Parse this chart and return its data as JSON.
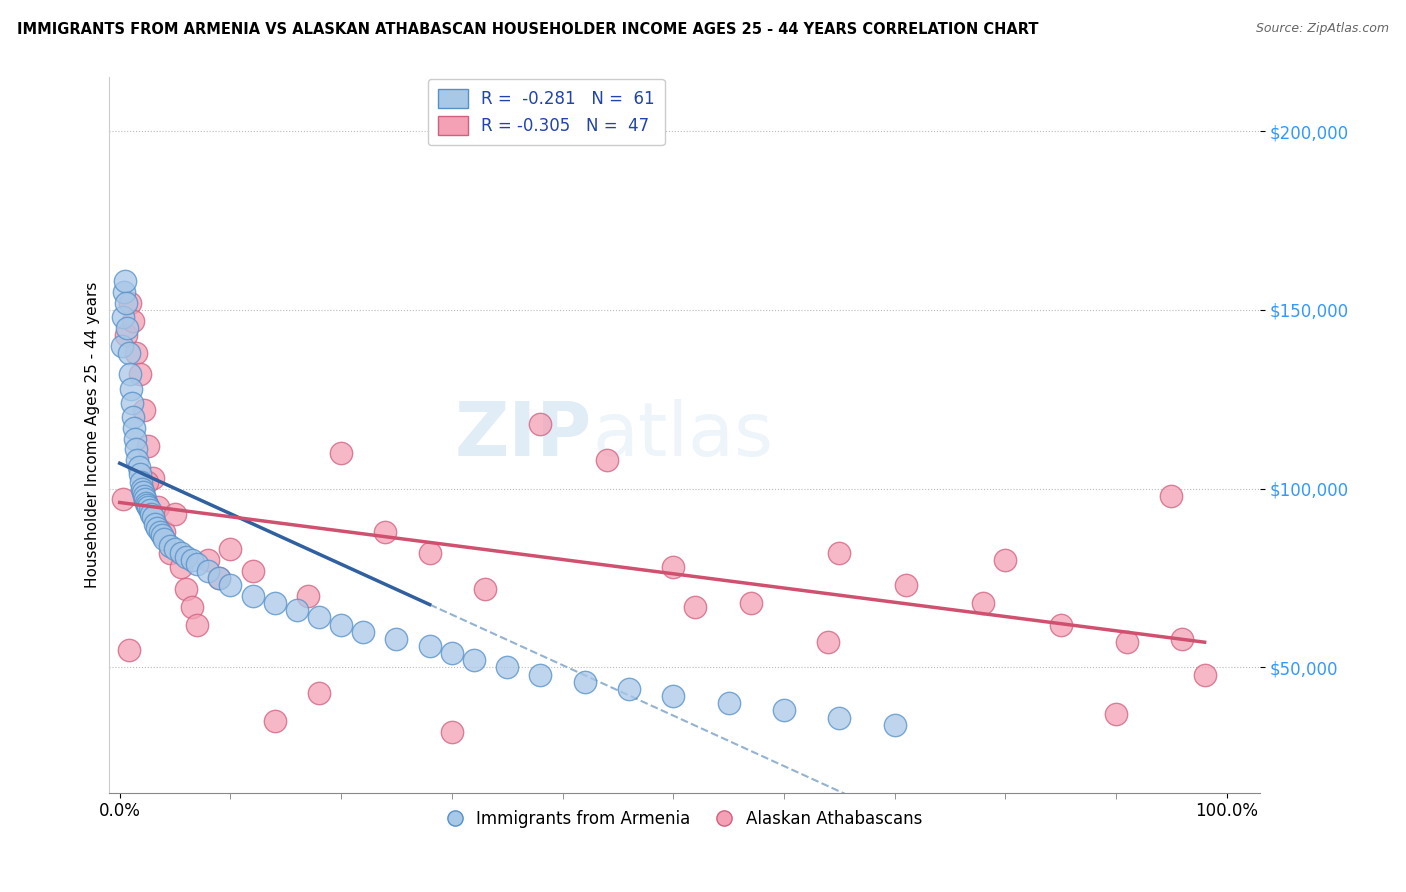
{
  "title": "IMMIGRANTS FROM ARMENIA VS ALASKAN ATHABASCAN HOUSEHOLDER INCOME AGES 25 - 44 YEARS CORRELATION CHART",
  "source": "Source: ZipAtlas.com",
  "ylabel": "Householder Income Ages 25 - 44 years",
  "y_tick_labels": [
    "$50,000",
    "$100,000",
    "$150,000",
    "$200,000"
  ],
  "y_tick_values": [
    50000,
    100000,
    150000,
    200000
  ],
  "legend_r1": "R =  -0.281",
  "legend_n1": "N =  61",
  "legend_r2": "R = -0.305",
  "legend_n2": "N =  47",
  "color_blue": "#a8c8e8",
  "color_pink": "#f4a0b5",
  "color_blue_edge": "#5590c8",
  "color_pink_edge": "#d06080",
  "color_blue_line": "#3060a0",
  "color_pink_line": "#d05070",
  "color_dashed": "#88aacc",
  "watermark_zip": "ZIP",
  "watermark_atlas": "atlas",
  "blue_scatter_x": [
    0.002,
    0.003,
    0.004,
    0.005,
    0.006,
    0.007,
    0.008,
    0.009,
    0.01,
    0.011,
    0.012,
    0.013,
    0.014,
    0.015,
    0.016,
    0.017,
    0.018,
    0.019,
    0.02,
    0.021,
    0.022,
    0.023,
    0.024,
    0.025,
    0.026,
    0.027,
    0.028,
    0.03,
    0.032,
    0.034,
    0.036,
    0.038,
    0.04,
    0.045,
    0.05,
    0.055,
    0.06,
    0.065,
    0.07,
    0.08,
    0.09,
    0.1,
    0.12,
    0.14,
    0.16,
    0.18,
    0.2,
    0.22,
    0.25,
    0.28,
    0.3,
    0.32,
    0.35,
    0.38,
    0.42,
    0.46,
    0.5,
    0.55,
    0.6,
    0.65,
    0.7
  ],
  "blue_scatter_y": [
    140000,
    148000,
    155000,
    158000,
    152000,
    145000,
    138000,
    132000,
    128000,
    124000,
    120000,
    117000,
    114000,
    111000,
    108000,
    106000,
    104000,
    102000,
    100000,
    99000,
    98000,
    97000,
    96000,
    95500,
    95000,
    94000,
    93000,
    92000,
    90000,
    89000,
    88000,
    87000,
    86000,
    84000,
    83000,
    82000,
    81000,
    80000,
    79000,
    77000,
    75000,
    73000,
    70000,
    68000,
    66000,
    64000,
    62000,
    60000,
    58000,
    56000,
    54000,
    52000,
    50000,
    48000,
    46000,
    44000,
    42000,
    40000,
    38000,
    36000,
    34000
  ],
  "pink_scatter_x": [
    0.003,
    0.006,
    0.009,
    0.012,
    0.015,
    0.018,
    0.022,
    0.026,
    0.03,
    0.035,
    0.04,
    0.045,
    0.05,
    0.055,
    0.06,
    0.065,
    0.07,
    0.08,
    0.09,
    0.1,
    0.12,
    0.14,
    0.17,
    0.2,
    0.24,
    0.28,
    0.33,
    0.38,
    0.44,
    0.5,
    0.57,
    0.64,
    0.71,
    0.78,
    0.85,
    0.91,
    0.95,
    0.98,
    0.008,
    0.025,
    0.18,
    0.3,
    0.52,
    0.65,
    0.8,
    0.9,
    0.96
  ],
  "pink_scatter_y": [
    97000,
    143000,
    152000,
    147000,
    138000,
    132000,
    122000,
    112000,
    103000,
    95000,
    88000,
    82000,
    93000,
    78000,
    72000,
    67000,
    62000,
    80000,
    75000,
    83000,
    77000,
    35000,
    70000,
    110000,
    88000,
    82000,
    72000,
    118000,
    108000,
    78000,
    68000,
    57000,
    73000,
    68000,
    62000,
    57000,
    98000,
    48000,
    55000,
    102000,
    43000,
    32000,
    67000,
    82000,
    80000,
    37000,
    58000
  ]
}
